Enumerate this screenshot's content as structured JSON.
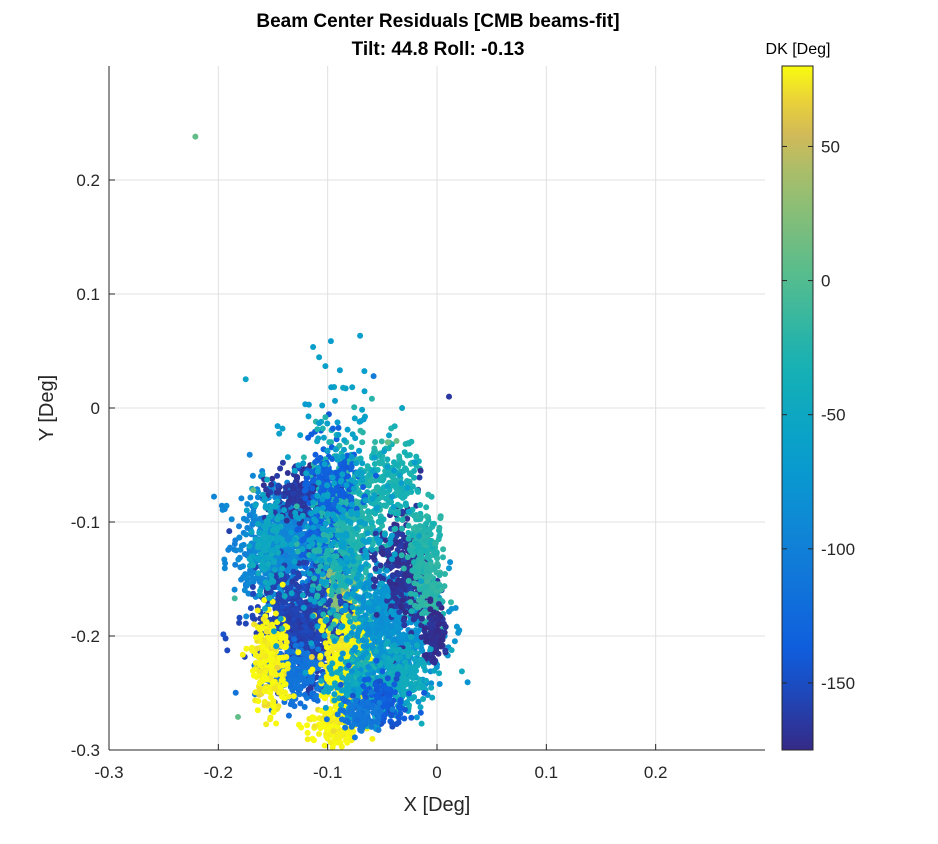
{
  "chart_data": {
    "type": "scatter",
    "title": "Beam Center Residuals [CMB beams-fit]",
    "subtitle": "Tilt: 44.8  Roll: -0.13",
    "xlabel": "X [Deg]",
    "ylabel": "Y [Deg]",
    "xlim": [
      -0.3,
      0.3
    ],
    "ylim": [
      -0.3,
      0.3
    ],
    "xticks": [
      -0.3,
      -0.2,
      -0.1,
      0,
      0.1,
      0.2
    ],
    "xtick_labels": [
      "-0.3",
      "-0.2",
      "-0.1",
      "0",
      "0.1",
      "0.2"
    ],
    "yticks": [
      -0.3,
      -0.2,
      -0.1,
      0,
      0.1,
      0.2
    ],
    "ytick_labels": [
      "-0.3",
      "-0.2",
      "-0.1",
      "0",
      "0.1",
      "0.2"
    ],
    "grid": true,
    "colorbar": {
      "label": "DK [Deg]",
      "range": [
        -175,
        80
      ],
      "ticks": [
        50,
        0,
        -50,
        -100,
        -150
      ],
      "tick_labels": [
        "50",
        "0",
        "-50",
        "-100",
        "-150"
      ],
      "colormap": "parula"
    },
    "clusters": [
      {
        "cx": -0.135,
        "cy": -0.113,
        "sx": 0.024,
        "sy": 0.024,
        "n": 650,
        "dk": -95
      },
      {
        "cx": -0.148,
        "cy": -0.14,
        "sx": 0.013,
        "sy": 0.018,
        "n": 220,
        "dk": -90
      },
      {
        "cx": -0.125,
        "cy": -0.075,
        "sx": 0.015,
        "sy": 0.012,
        "n": 180,
        "dk": -165
      },
      {
        "cx": -0.1,
        "cy": -0.135,
        "sx": 0.013,
        "sy": 0.045,
        "n": 340,
        "dk": -135
      },
      {
        "cx": -0.09,
        "cy": -0.175,
        "sx": 0.009,
        "sy": 0.018,
        "n": 120,
        "dk": 25
      },
      {
        "cx": -0.125,
        "cy": -0.192,
        "sx": 0.02,
        "sy": 0.022,
        "n": 700,
        "dk": -158
      },
      {
        "cx": -0.13,
        "cy": -0.232,
        "sx": 0.015,
        "sy": 0.012,
        "n": 240,
        "dk": -115
      },
      {
        "cx": -0.153,
        "cy": -0.222,
        "sx": 0.008,
        "sy": 0.022,
        "n": 260,
        "dk": 78
      },
      {
        "cx": -0.082,
        "cy": -0.222,
        "sx": 0.012,
        "sy": 0.025,
        "n": 380,
        "dk": 78
      },
      {
        "cx": -0.095,
        "cy": -0.278,
        "sx": 0.01,
        "sy": 0.01,
        "n": 120,
        "dk": 78
      },
      {
        "cx": -0.078,
        "cy": -0.105,
        "sx": 0.018,
        "sy": 0.04,
        "n": 520,
        "dk": -25
      },
      {
        "cx": -0.07,
        "cy": -0.245,
        "sx": 0.014,
        "sy": 0.015,
        "n": 180,
        "dk": -55
      },
      {
        "cx": -0.055,
        "cy": -0.21,
        "sx": 0.012,
        "sy": 0.025,
        "n": 140,
        "dk": -30
      },
      {
        "cx": -0.04,
        "cy": -0.195,
        "sx": 0.018,
        "sy": 0.028,
        "n": 600,
        "dk": -78
      },
      {
        "cx": -0.028,
        "cy": -0.14,
        "sx": 0.013,
        "sy": 0.025,
        "n": 300,
        "dk": -168
      },
      {
        "cx": -0.012,
        "cy": -0.12,
        "sx": 0.008,
        "sy": 0.018,
        "n": 160,
        "dk": -25
      },
      {
        "cx": -0.007,
        "cy": -0.165,
        "sx": 0.007,
        "sy": 0.015,
        "n": 140,
        "dk": -20
      },
      {
        "cx": -0.002,
        "cy": -0.2,
        "sx": 0.005,
        "sy": 0.012,
        "n": 100,
        "dk": -172
      },
      {
        "cx": -0.035,
        "cy": -0.238,
        "sx": 0.015,
        "sy": 0.015,
        "n": 180,
        "dk": -45
      },
      {
        "cx": -0.05,
        "cy": -0.255,
        "sx": 0.012,
        "sy": 0.012,
        "n": 120,
        "dk": -140
      },
      {
        "cx": -0.04,
        "cy": -0.065,
        "sx": 0.012,
        "sy": 0.018,
        "n": 160,
        "dk": -30
      },
      {
        "cx": -0.095,
        "cy": -0.065,
        "sx": 0.012,
        "sy": 0.015,
        "n": 140,
        "dk": -135
      },
      {
        "cx": -0.155,
        "cy": -0.12,
        "sx": 0.008,
        "sy": 0.02,
        "n": 110,
        "dk": -50
      },
      {
        "cx": -0.09,
        "cy": -0.095,
        "sx": 0.03,
        "sy": 0.06,
        "n": 260,
        "dk": -60
      },
      {
        "cx": -0.07,
        "cy": -0.27,
        "sx": 0.01,
        "sy": 0.008,
        "n": 80,
        "dk": -110
      }
    ],
    "outliers": [
      {
        "x": -0.221,
        "y": 0.238,
        "dk": 8
      },
      {
        "x": -0.058,
        "y": 0.028,
        "dk": -105
      },
      {
        "x": 0.011,
        "y": 0.01,
        "dk": -165
      },
      {
        "x": -0.045,
        "y": -0.03,
        "dk": 10
      },
      {
        "x": -0.037,
        "y": -0.029,
        "dk": 10
      },
      {
        "x": -0.168,
        "y": -0.072,
        "dk": 10
      },
      {
        "x": -0.015,
        "y": -0.055,
        "dk": -170
      },
      {
        "x": -0.19,
        "y": -0.108,
        "dk": -160
      },
      {
        "x": -0.185,
        "y": -0.167,
        "dk": -10
      },
      {
        "x": -0.182,
        "y": -0.271,
        "dk": 8
      },
      {
        "x": -0.07,
        "y": -0.02,
        "dk": -20
      },
      {
        "x": -0.1,
        "y": -0.29,
        "dk": 78
      },
      {
        "x": -0.087,
        "y": -0.297,
        "dk": 78
      }
    ]
  }
}
